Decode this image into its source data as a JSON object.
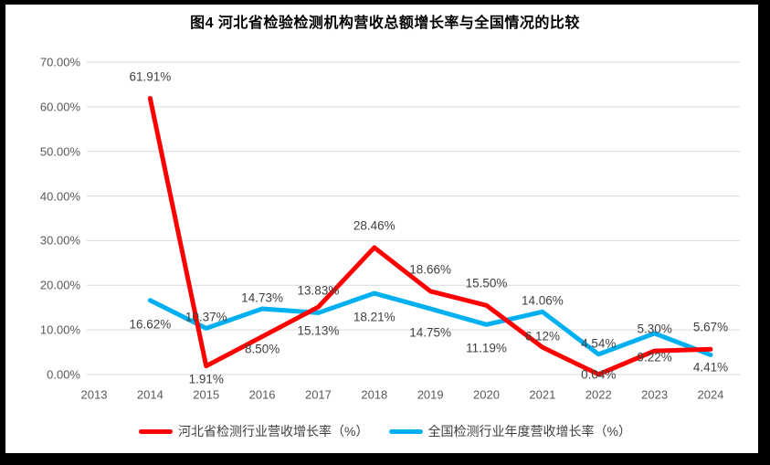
{
  "chart_data": {
    "type": "line",
    "title": "图4 河北省检验检测机构营收总额增长率与全国情况的比较",
    "categories": [
      "2013",
      "2014",
      "2015",
      "2016",
      "2017",
      "2018",
      "2019",
      "2020",
      "2021",
      "2022",
      "2023",
      "2024"
    ],
    "y_ticks": [
      "70.00%",
      "60.00%",
      "50.00%",
      "40.00%",
      "30.00%",
      "20.00%",
      "10.00%",
      "0.00%"
    ],
    "ylim": [
      0,
      70
    ],
    "grid": "horizontal",
    "legend_position": "bottom",
    "colors": {
      "hebei_line": "#FF0000",
      "national_line": "#00B0F0",
      "gridline": "#D9D9D9",
      "axis_text": "#595959",
      "label_text": "#3F3F3F"
    },
    "series": [
      {
        "id": "hebei",
        "name": "河北省检测行业营收增长率（%）",
        "color": "#FF0000",
        "values": [
          null,
          61.91,
          1.91,
          8.5,
          15.13,
          28.46,
          18.66,
          15.5,
          6.12,
          0.04,
          5.3,
          5.67
        ],
        "labels": [
          null,
          "61.91%",
          "1.91%",
          "8.50%",
          "15.13%",
          "28.46%",
          "18.66%",
          "15.50%",
          "6.12%",
          "0.04%",
          "5.30%",
          "5.67%"
        ],
        "label_pos": [
          null,
          "above-far",
          "below",
          "below",
          "below-far",
          "above-far",
          "above-far",
          "above-far",
          "above",
          "on",
          "above-far",
          "above-far"
        ]
      },
      {
        "id": "national",
        "name": "全国检测行业年度营收增长率（%）",
        "color": "#00B0F0",
        "values": [
          null,
          16.62,
          10.37,
          14.73,
          13.83,
          18.21,
          14.75,
          11.19,
          14.06,
          4.54,
          9.22,
          4.41
        ],
        "labels": [
          null,
          "16.62%",
          "10.37%",
          "14.73%",
          "13.83%",
          "18.21%",
          "14.75%",
          "11.19%",
          "14.06%",
          "4.54%",
          "9.22%",
          "4.41%"
        ],
        "label_pos": [
          null,
          "below-far",
          "above",
          "above",
          "above-far",
          "below-far",
          "below-far",
          "below-far",
          "above",
          "above",
          "below-far",
          "below"
        ]
      }
    ]
  }
}
